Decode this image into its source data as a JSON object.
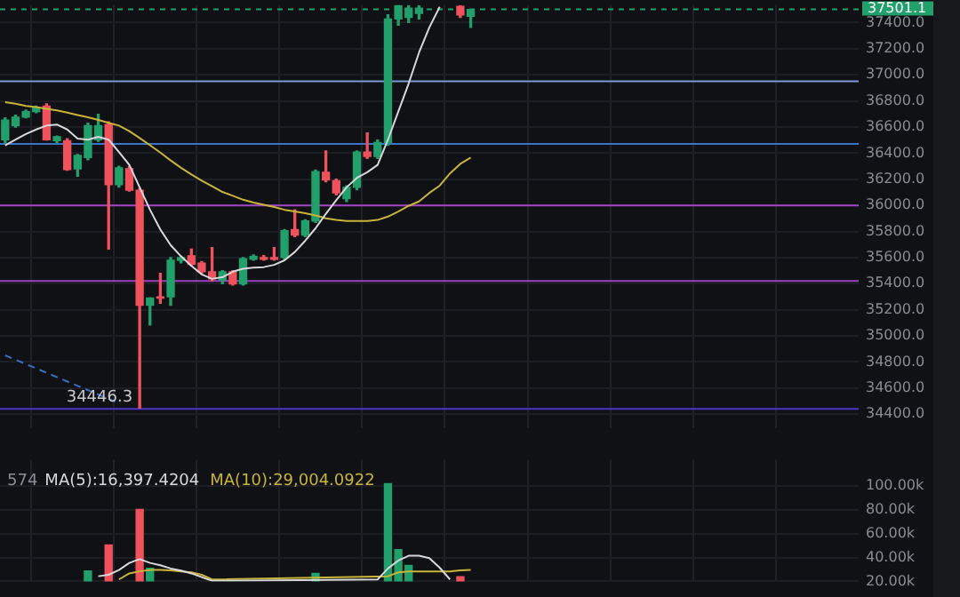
{
  "chart_data": [
    {
      "type": "candlestick",
      "categories": [
        null,
        null,
        null,
        null,
        null,
        null,
        null,
        null,
        null,
        null,
        null,
        null,
        null,
        null,
        null,
        null,
        null,
        null,
        null,
        null,
        null,
        null,
        null,
        null,
        null,
        null,
        null,
        null,
        null,
        null,
        null,
        null,
        null,
        null,
        null,
        null,
        null,
        null,
        null,
        null,
        null,
        null,
        null,
        null,
        null,
        null,
        null,
        null,
        null,
        null,
        null,
        null,
        null,
        null,
        null,
        null,
        null,
        null,
        null,
        null,
        null,
        null,
        null,
        null,
        null,
        null,
        null,
        null,
        null,
        null,
        null,
        null,
        null,
        null,
        null,
        null,
        null,
        null,
        null,
        null,
        null,
        null,
        null
      ],
      "ohlc": [
        [
          36503,
          36670,
          36480,
          36654
        ],
        [
          36611,
          36690,
          36600,
          36675
        ],
        [
          36675,
          36730,
          36670,
          36718
        ],
        [
          36718,
          36760,
          36710,
          36748
        ],
        [
          36761,
          36778,
          36500,
          36503
        ],
        [
          36495,
          36530,
          36480,
          36525
        ],
        [
          36495,
          36510,
          36270,
          36275
        ],
        [
          36280,
          36390,
          36224,
          36383
        ],
        [
          36366,
          36630,
          36350,
          36611
        ],
        [
          36503,
          36697,
          36490,
          36611
        ],
        [
          36619,
          36640,
          35665,
          36159
        ],
        [
          36159,
          36300,
          36140,
          36288
        ],
        [
          36280,
          36300,
          36110,
          36116
        ],
        [
          36116,
          36130,
          34446.3,
          35234
        ],
        [
          35234,
          35290,
          35084,
          35290
        ],
        [
          35299,
          35480,
          35250,
          35290
        ],
        [
          35299,
          35600,
          35234,
          35579
        ],
        [
          35579,
          35610,
          35560,
          35600
        ],
        [
          35613,
          35665,
          35540,
          35548
        ],
        [
          35557,
          35570,
          35480,
          35492
        ],
        [
          35492,
          35677,
          35420,
          35437
        ],
        [
          35428,
          35500,
          35400,
          35492
        ],
        [
          35492,
          35500,
          35390,
          35398
        ],
        [
          35398,
          35600,
          35390,
          35591
        ],
        [
          35587,
          35620,
          35580,
          35609
        ],
        [
          35600,
          35615,
          35580,
          35587
        ],
        [
          35600,
          35677,
          35580,
          35587
        ],
        [
          35600,
          35815,
          35590,
          35806
        ],
        [
          35815,
          35966,
          35760,
          35772
        ],
        [
          35772,
          35890,
          35760,
          35880
        ],
        [
          35880,
          36270,
          35870,
          36258
        ],
        [
          36254,
          36417,
          36180,
          36194
        ],
        [
          36189,
          36200,
          36080,
          36095
        ],
        [
          36052,
          36150,
          36030,
          36138
        ],
        [
          36138,
          36417,
          36120,
          36409
        ],
        [
          36409,
          36555,
          36360,
          36374
        ],
        [
          36374,
          36500,
          36360,
          36482
        ],
        [
          36482,
          37460,
          36460,
          37428
        ],
        [
          37428,
          37530,
          37380,
          37530
        ],
        [
          37440,
          37530,
          37400,
          37510
        ],
        [
          37470,
          37530,
          37428,
          37510
        ],
        null,
        null,
        null,
        [
          37525,
          37530,
          37440,
          37458
        ],
        [
          37449,
          37501.1,
          37363,
          37501.1
        ],
        null,
        null,
        null,
        null,
        null,
        null,
        null,
        null,
        null,
        null,
        null,
        null,
        null,
        null,
        null,
        null,
        null,
        null,
        null,
        null,
        null,
        null,
        null,
        null,
        null,
        null,
        null,
        null,
        null,
        null,
        null,
        null,
        null,
        null,
        null,
        null,
        null
      ],
      "colors": [
        "#22a06b",
        "#22a06b",
        "#22a06b",
        "#22a06b",
        "#f0525d",
        "#22a06b",
        "#f0525d",
        "#22a06b",
        "#22a06b",
        "#22a06b",
        "#f0525d",
        "#22a06b",
        "#f0525d",
        "#f0525d",
        "#22a06b",
        "#f0525d",
        "#22a06b",
        "#22a06b",
        "#f0525d",
        "#f0525d",
        "#f0525d",
        "#22a06b",
        "#f0525d",
        "#22a06b",
        "#22a06b",
        "#f0525d",
        "#f0525d",
        "#22a06b",
        "#f0525d",
        "#22a06b",
        "#22a06b",
        "#f0525d",
        "#f0525d",
        "#22a06b",
        "#22a06b",
        "#f0525d",
        "#22a06b",
        "#22a06b",
        "#22a06b",
        "#22a06b",
        "#22a06b",
        null,
        null,
        null,
        "#f0525d",
        "#22a06b",
        null,
        null,
        null,
        null,
        null,
        null,
        null,
        null,
        null,
        null,
        null,
        null,
        null,
        null,
        null,
        null,
        null,
        null,
        null,
        null,
        null,
        null,
        null,
        null,
        null,
        null,
        null,
        null,
        null,
        null,
        null,
        null,
        null,
        null,
        null,
        null,
        null
      ],
      "series": [
        {
          "type": "line",
          "color": "#d8d8dc",
          "values": [
            36460,
            36503,
            36546,
            36581,
            36611,
            36619,
            36581,
            36512,
            36503,
            36525,
            36503,
            36409,
            36310,
            36138,
            35966,
            35815,
            35695,
            35609,
            35536,
            35471,
            35437,
            35449,
            35492,
            35514,
            35523,
            35527,
            35544,
            35579,
            35643,
            35729,
            35824,
            35935,
            36039,
            36138,
            36211,
            36254,
            36310,
            36503,
            36718,
            36933,
            37170,
            37363,
            37520,
            null,
            null,
            null,
            null,
            null,
            null,
            null,
            null,
            null,
            null,
            null,
            null,
            null,
            null,
            null,
            null,
            null,
            null,
            null,
            null,
            null,
            null,
            null,
            null,
            null,
            null,
            null,
            null,
            null,
            null,
            null,
            null,
            null,
            null,
            null,
            null,
            null,
            null,
            null,
            null
          ]
        },
        {
          "type": "line",
          "color": "#c9b43a",
          "values": [
            36791,
            36778,
            36761,
            36753,
            36740,
            36727,
            36710,
            36692,
            36675,
            36654,
            36632,
            36611,
            36568,
            36516,
            36460,
            36404,
            36344,
            36288,
            36237,
            36189,
            36146,
            36103,
            36073,
            36043,
            36022,
            36004,
            35987,
            35966,
            35953,
            35940,
            35923,
            35901,
            35888,
            35880,
            35880,
            35880,
            35888,
            35914,
            35953,
            35996,
            36030,
            36095,
            36151,
            36245,
            36318,
            36366,
            null,
            null,
            null,
            null,
            null,
            null,
            null,
            null,
            null,
            null,
            null,
            null,
            null,
            null,
            null,
            null,
            null,
            null,
            null,
            null,
            null,
            null,
            null,
            null,
            null,
            null,
            null,
            null,
            null,
            null,
            null,
            null,
            null,
            null,
            null,
            null,
            null
          ]
        },
        {
          "type": "line",
          "color": "#3a6fc0",
          "line_style": "dashed",
          "values": [
            34851,
            null,
            null,
            null,
            null,
            null,
            null,
            null,
            null,
            null,
            null,
            34484,
            null,
            null,
            null,
            null,
            null,
            null,
            null,
            null,
            null,
            null,
            null,
            null,
            null,
            null,
            null,
            null,
            null,
            null,
            null,
            null,
            null,
            null,
            null,
            null,
            null,
            null,
            null,
            null,
            null,
            null,
            null,
            null,
            null,
            null,
            null,
            null,
            null,
            null,
            null,
            null,
            null,
            null,
            null,
            null,
            null,
            null,
            null,
            null,
            null,
            null,
            null,
            null,
            null,
            null,
            null,
            null,
            null,
            null,
            null,
            null,
            null,
            null,
            null,
            null,
            null,
            null,
            null,
            null,
            null,
            null,
            null
          ]
        }
      ],
      "ylim": [
        34290,
        37535
      ],
      "yticks": [
        {
          "value": 34400,
          "label": "34400.0"
        },
        {
          "value": 34600,
          "label": "34600.0"
        },
        {
          "value": 34800,
          "label": "34800.0"
        },
        {
          "value": 35000,
          "label": "35000.0"
        },
        {
          "value": 35200,
          "label": "35200.0"
        },
        {
          "value": 35400,
          "label": "35400.0"
        },
        {
          "value": 35600,
          "label": "35600.0"
        },
        {
          "value": 35800,
          "label": "35800.0"
        },
        {
          "value": 36000,
          "label": "36000.0"
        },
        {
          "value": 36200,
          "label": "36200.0"
        },
        {
          "value": 36400,
          "label": "36400.0"
        },
        {
          "value": 36600,
          "label": "36600.0"
        },
        {
          "value": 36800,
          "label": "36800.0"
        },
        {
          "value": 37000,
          "label": "37000.0"
        },
        {
          "value": 37200,
          "label": "37200.0"
        },
        {
          "value": 37400,
          "label": "37400.0"
        }
      ],
      "ref_lines": [
        {
          "axis": "y",
          "value": 36950,
          "color": "#7c9ad6"
        },
        {
          "axis": "y",
          "value": 36470,
          "color": "#3a73c8"
        },
        {
          "axis": "y",
          "value": 36000,
          "color": "#a346c4"
        },
        {
          "axis": "y",
          "value": 35420,
          "color": "#9b42c0"
        },
        {
          "axis": "y",
          "value": 34440,
          "color": "#4a36c8"
        },
        {
          "axis": "y",
          "value": 37501.1,
          "label": "37501.1",
          "color": "#22a06b",
          "line_style": "dashed"
        }
      ],
      "annotations": [
        {
          "text": "34446.3",
          "y": 34446.3
        }
      ],
      "grid": true,
      "tick_labels": "y",
      "marker": "none"
    },
    {
      "type": "bar",
      "categories": [
        null,
        null,
        null,
        null,
        null,
        null,
        null,
        null,
        null,
        null,
        null,
        null,
        null,
        null,
        null,
        null,
        null,
        null,
        null,
        null,
        null,
        null,
        null,
        null,
        null,
        null,
        null,
        null,
        null,
        null,
        null,
        null,
        null,
        null,
        null,
        null,
        null,
        null,
        null,
        null,
        null,
        null,
        null,
        null,
        null,
        null,
        null,
        null,
        null,
        null,
        null,
        null,
        null,
        null,
        null,
        null,
        null,
        null,
        null,
        null,
        null,
        null,
        null,
        null,
        null,
        null,
        null,
        null,
        null,
        null,
        null,
        null,
        null,
        null,
        null,
        null,
        null,
        null,
        null,
        null,
        null,
        null,
        null
      ],
      "series": [
        {
          "type": "bar",
          "values": [
            null,
            null,
            null,
            null,
            null,
            null,
            null,
            null,
            28800,
            null,
            50600,
            null,
            null,
            80300,
            31000,
            null,
            null,
            null,
            null,
            null,
            null,
            null,
            null,
            null,
            null,
            null,
            null,
            null,
            null,
            null,
            26700,
            null,
            null,
            null,
            null,
            null,
            null,
            102000,
            46700,
            33500,
            null,
            null,
            null,
            null,
            24000,
            null,
            null,
            null,
            null,
            null,
            null,
            null,
            null,
            null,
            null,
            null,
            null,
            null,
            null,
            null,
            null,
            null,
            null,
            null,
            null,
            null,
            null,
            null,
            null,
            null,
            null,
            null,
            null,
            null,
            null,
            null,
            null,
            null,
            null,
            null,
            null,
            null,
            null
          ],
          "colors": [
            null,
            null,
            null,
            null,
            null,
            null,
            null,
            null,
            "#22a06b",
            null,
            "#f0525d",
            null,
            null,
            "#f0525d",
            "#22a06b",
            null,
            null,
            null,
            null,
            null,
            null,
            null,
            null,
            null,
            null,
            null,
            null,
            null,
            null,
            null,
            "#22a06b",
            null,
            null,
            null,
            null,
            null,
            null,
            "#22a06b",
            "#22a06b",
            "#22a06b",
            null,
            null,
            null,
            null,
            "#f0525d",
            null,
            null,
            null,
            null,
            null,
            null,
            null,
            null,
            null,
            null,
            null,
            null,
            null,
            null,
            null,
            null,
            null,
            null,
            null,
            null,
            null,
            null,
            null,
            null,
            null,
            null,
            null,
            null,
            null,
            null,
            null,
            null,
            null,
            null,
            null,
            null,
            null,
            null
          ]
        },
        {
          "type": "line",
          "name": "MA(5):16,397.4204",
          "color": "#d8d8dc",
          "values": [
            null,
            null,
            null,
            null,
            null,
            null,
            null,
            null,
            null,
            24300,
            25500,
            29500,
            35500,
            38700,
            35500,
            33500,
            30800,
            29100,
            26700,
            23600,
            20400,
            null,
            null,
            null,
            null,
            null,
            null,
            null,
            null,
            null,
            null,
            null,
            null,
            null,
            null,
            null,
            21600,
            30800,
            37500,
            41500,
            41500,
            39500,
            31500,
            21600,
            null,
            null,
            null,
            null,
            null,
            null,
            null,
            null,
            null,
            null,
            null,
            null,
            null,
            null,
            null,
            null,
            null,
            null,
            null,
            null,
            null,
            null,
            null,
            null,
            null,
            null,
            null,
            null,
            null,
            null,
            null,
            null,
            null,
            null,
            null,
            null,
            null,
            null,
            null
          ]
        },
        {
          "type": "line",
          "name": "MA(10):29,004.0922",
          "color": "#c9b43a",
          "values": [
            null,
            null,
            null,
            null,
            null,
            null,
            null,
            null,
            null,
            null,
            null,
            21600,
            26700,
            28400,
            29600,
            29600,
            29200,
            28400,
            27600,
            25500,
            21600,
            null,
            null,
            null,
            null,
            null,
            null,
            null,
            null,
            null,
            null,
            null,
            null,
            null,
            null,
            null,
            null,
            24300,
            27600,
            28400,
            28400,
            28400,
            28400,
            28400,
            29200,
            29600,
            null,
            null,
            null,
            null,
            null,
            null,
            null,
            null,
            null,
            null,
            null,
            null,
            null,
            null,
            null,
            null,
            null,
            null,
            null,
            null,
            null,
            null,
            null,
            null,
            null,
            null,
            null,
            null,
            null,
            null,
            null,
            null,
            null,
            null,
            null,
            null,
            null
          ]
        }
      ],
      "ylim": [
        20000,
        122000
      ],
      "yticks": [
        {
          "value": 20000,
          "label": "20.00k"
        },
        {
          "value": 40000,
          "label": "40.00k"
        },
        {
          "value": 60000,
          "label": "60.00k"
        },
        {
          "value": 80000,
          "label": "80.00k"
        },
        {
          "value": 100000,
          "label": "100.00k"
        }
      ],
      "annotations": [
        "574"
      ],
      "legend": "top left",
      "grid": true,
      "tick_labels": "y",
      "marker": "none"
    }
  ]
}
